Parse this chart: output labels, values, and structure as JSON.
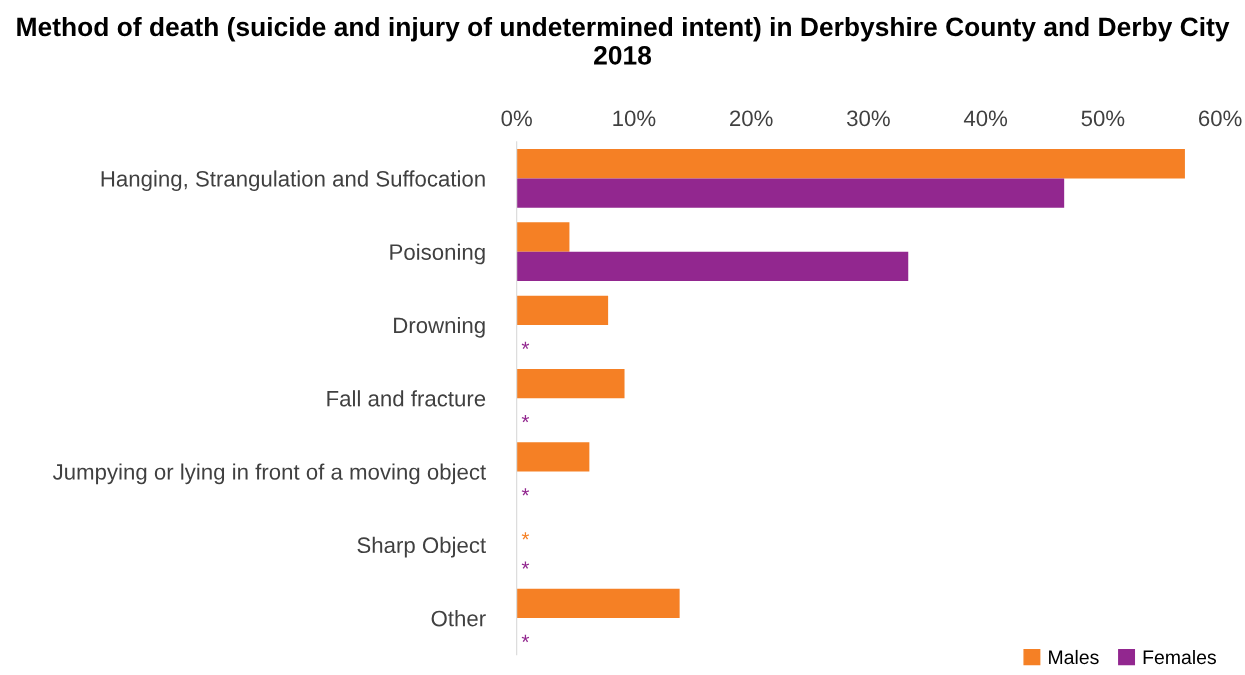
{
  "chart_data": {
    "type": "bar",
    "orientation": "horizontal",
    "title": "Method of death (suicide and injury of undetermined intent) in Derbyshire County and Derby City 2018",
    "categories": [
      "Hanging, Strangulation and Suffocation",
      "Poisoning",
      "Drowning",
      "Fall and fracture",
      "Jumpying or lying in front of a moving object",
      "Sharp Object",
      "Other"
    ],
    "series": [
      {
        "name": "Males",
        "color": "#f58025",
        "values": [
          57,
          4.5,
          7.8,
          9.2,
          6.2,
          null,
          13.9
        ],
        "value_labels": [
          null,
          null,
          null,
          null,
          null,
          "*",
          null
        ]
      },
      {
        "name": "Females",
        "color": "#92278f",
        "values": [
          46.7,
          33.4,
          null,
          null,
          null,
          null,
          null
        ],
        "value_labels": [
          null,
          null,
          "*",
          "*",
          "*",
          "*",
          "*"
        ]
      }
    ],
    "xlim": [
      0,
      60
    ],
    "xticks": [
      {
        "value": 0,
        "label": "0%"
      },
      {
        "value": 10,
        "label": "10%"
      },
      {
        "value": 20,
        "label": "20%"
      },
      {
        "value": 30,
        "label": "30%"
      },
      {
        "value": 40,
        "label": "40%"
      },
      {
        "value": 50,
        "label": "50%"
      },
      {
        "value": 60,
        "label": "60%"
      }
    ],
    "grid": false,
    "legend": "bottom right"
  }
}
